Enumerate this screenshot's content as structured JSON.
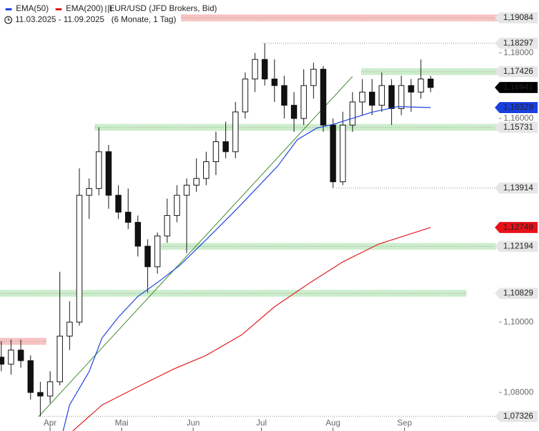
{
  "chart_data": {
    "type": "candlestick",
    "title": "EUR/USD (JFD Brokers, Bid)",
    "subtitle": "11.03.2025 - 11.09.2025   (6 Monate, 1 Tag)",
    "log_scale": true,
    "xlim": [
      -0.4,
      132.4
    ],
    "ylim": [
      1.0692,
      1.1964
    ],
    "xticks": [
      {
        "value": 15,
        "label": "Apr"
      },
      {
        "value": 37,
        "label": "Mai"
      },
      {
        "value": 59,
        "label": "Jun"
      },
      {
        "value": 80,
        "label": "Jul"
      },
      {
        "value": 102,
        "label": "Aug"
      },
      {
        "value": 124,
        "label": "Sep"
      }
    ],
    "yticks": [
      {
        "value": 1.08,
        "label": "1,08000"
      },
      {
        "value": 1.1,
        "label": "1,10000"
      },
      {
        "value": 1.16,
        "label": "1,16000"
      },
      {
        "value": 1.18,
        "label": "1,18000"
      }
    ],
    "x": [
      0,
      3,
      6,
      9,
      12,
      15,
      18,
      21,
      24,
      27,
      30,
      33,
      36,
      39,
      42,
      45,
      48,
      51,
      54,
      57,
      60,
      63,
      66,
      69,
      72,
      75,
      78,
      81,
      84,
      87,
      90,
      93,
      96,
      99,
      102,
      105,
      108,
      111,
      114,
      117,
      120,
      123,
      126,
      129,
      132
    ],
    "open": [
      1.09,
      1.088,
      1.092,
      1.089,
      1.08,
      1.079,
      1.083,
      1.096,
      1.1,
      1.137,
      1.139,
      1.15,
      1.137,
      1.132,
      1.129,
      1.122,
      1.116,
      1.125,
      1.131,
      1.137,
      1.14,
      1.142,
      1.147,
      1.153,
      1.15,
      1.162,
      1.172,
      1.178,
      1.172,
      1.17,
      1.164,
      1.16,
      1.17,
      1.175,
      1.158,
      1.141,
      1.158,
      1.165,
      1.168,
      1.164,
      1.17,
      1.163,
      1.17,
      1.168,
      1.172
    ],
    "high": [
      1.0945,
      1.095,
      1.095,
      1.0905,
      1.083,
      1.086,
      1.1145,
      1.106,
      1.145,
      1.142,
      1.1573,
      1.152,
      1.14,
      1.139,
      1.131,
      1.124,
      1.126,
      1.136,
      1.14,
      1.142,
      1.148,
      1.15,
      1.156,
      1.159,
      1.165,
      1.174,
      1.18,
      1.183,
      1.178,
      1.173,
      1.168,
      1.175,
      1.177,
      1.176,
      1.16,
      1.162,
      1.168,
      1.172,
      1.172,
      1.174,
      1.172,
      1.173,
      1.172,
      1.178,
      1.173
    ],
    "low": [
      1.086,
      1.085,
      1.087,
      1.078,
      1.0733,
      1.077,
      1.082,
      1.092,
      1.099,
      1.13,
      1.137,
      1.133,
      1.13,
      1.127,
      1.119,
      1.1085,
      1.114,
      1.123,
      1.129,
      1.12,
      1.138,
      1.14,
      1.143,
      1.148,
      1.148,
      1.16,
      1.168,
      1.17,
      1.165,
      1.16,
      1.156,
      1.158,
      1.166,
      1.156,
      1.1391,
      1.14,
      1.156,
      1.161,
      1.161,
      1.162,
      1.158,
      1.161,
      1.162,
      1.166,
      1.168
    ],
    "close": [
      1.088,
      1.092,
      1.089,
      1.08,
      1.079,
      1.083,
      1.096,
      1.1,
      1.137,
      1.139,
      1.15,
      1.137,
      1.132,
      1.129,
      1.122,
      1.116,
      1.125,
      1.131,
      1.137,
      1.14,
      1.142,
      1.147,
      1.153,
      1.15,
      1.162,
      1.172,
      1.178,
      1.172,
      1.17,
      1.164,
      1.16,
      1.17,
      1.175,
      1.158,
      1.141,
      1.158,
      1.165,
      1.168,
      1.164,
      1.17,
      1.163,
      1.17,
      1.168,
      1.172,
      1.16941
    ],
    "up_color": "#ffffff",
    "down_color": "#111111",
    "series": [
      {
        "name": "EMA(50)",
        "color": "#1a3fe0",
        "x": [
          19,
          21,
          27,
          31,
          36,
          42,
          48,
          55,
          63,
          72,
          85,
          91,
          97,
          102,
          114,
          122,
          132
        ],
        "values": [
          1.0692,
          1.0765,
          1.0859,
          1.0955,
          1.1014,
          1.1074,
          1.1114,
          1.1165,
          1.1239,
          1.1325,
          1.1457,
          1.1536,
          1.1571,
          1.1582,
          1.1619,
          1.1636,
          1.16329
        ]
      },
      {
        "name": "EMA(200)",
        "color": "#e0191c",
        "x": [
          22,
          31,
          42,
          53,
          63,
          74,
          84,
          95,
          105,
          116,
          132
        ],
        "values": [
          1.0692,
          1.0765,
          1.0816,
          1.0866,
          1.0905,
          1.0964,
          1.1044,
          1.1114,
          1.1174,
          1.1226,
          1.12749
        ]
      }
    ],
    "zones": [
      {
        "value": 1.19084,
        "color": "#f7bcbc"
      },
      {
        "value": 1.17426,
        "color": "#c8ecc8"
      },
      {
        "value": 1.15731,
        "color": "#c8ecc8"
      },
      {
        "value": 1.12194,
        "color": "#c8ecc8"
      },
      {
        "value": 1.10829,
        "color": "#c8ecc8"
      },
      {
        "value": 1.0945,
        "color": "#f7bcbc"
      }
    ],
    "price_tags": [
      {
        "value": 1.19084,
        "label": "1,19084",
        "color": "#e6e6e6"
      },
      {
        "value": 1.18297,
        "label": "1,18297",
        "color": "#e6e6e6"
      },
      {
        "value": 1.17426,
        "label": "1,17426",
        "color": "#e6e6e6"
      },
      {
        "value": 1.16941,
        "label": "1,16941",
        "color": "#000000"
      },
      {
        "value": 1.16329,
        "label": "1,16329",
        "color": "#1a3fe0"
      },
      {
        "value": 1.15731,
        "label": "1,15731",
        "color": "#e6e6e6"
      },
      {
        "value": 1.13914,
        "label": "1,13914",
        "color": "#e6e6e6"
      },
      {
        "value": 1.12749,
        "label": "1,12749",
        "color": "#e8111a"
      },
      {
        "value": 1.12194,
        "label": "1,12194",
        "color": "#e6e6e6"
      },
      {
        "value": 1.10829,
        "label": "1,10829",
        "color": "#e6e6e6"
      },
      {
        "value": 1.07326,
        "label": "1,07326",
        "color": "#e6e6e6"
      }
    ]
  }
}
